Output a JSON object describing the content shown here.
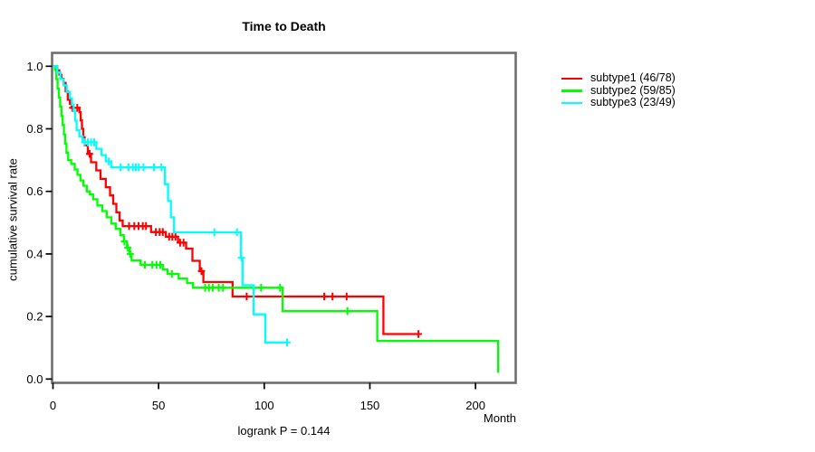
{
  "title": "Time to Death",
  "axes": {
    "y_label": "cumulative survival rate",
    "x_label": "Month"
  },
  "footer": {
    "logrank_label": "logrank P = 0.144"
  },
  "legend": {
    "items": [
      {
        "label": "subtype1 (46/78)",
        "color": "#ff0000"
      },
      {
        "label": "subtype2 (59/85)",
        "color": "#00ff00"
      },
      {
        "label": "subtype3 (23/49)",
        "color": "#00ffff"
      }
    ]
  },
  "chart_data": {
    "type": "line",
    "subtype": "kaplan-meier-step",
    "title": "Time to Death",
    "xlabel": "Month",
    "ylabel": "cumulative survival rate",
    "annotation": "logrank P = 0.144",
    "xlim": [
      0,
      220
    ],
    "ylim": [
      0.0,
      1.0
    ],
    "x_ticks": [
      0,
      50,
      100,
      150,
      200
    ],
    "y_ticks": [
      0.0,
      0.2,
      0.4,
      0.6,
      0.8,
      1.0
    ],
    "grid": false,
    "legend_position": "right-outside",
    "frame_color": "#6f6f6f",
    "series": [
      {
        "name": "subtype1 (46/78)",
        "color": "#ff0000",
        "steps": [
          [
            0,
            1.0
          ],
          [
            2,
            0.987
          ],
          [
            3,
            0.973
          ],
          [
            4,
            0.96
          ],
          [
            5,
            0.947
          ],
          [
            6,
            0.92
          ],
          [
            7,
            0.893
          ],
          [
            8,
            0.88
          ],
          [
            8.8,
            0.867
          ],
          [
            12.5,
            0.853
          ],
          [
            13.1,
            0.827
          ],
          [
            13.7,
            0.8
          ],
          [
            14.3,
            0.773
          ],
          [
            15,
            0.747
          ],
          [
            16.5,
            0.72
          ],
          [
            18,
            0.693
          ],
          [
            20.5,
            0.667
          ],
          [
            22.5,
            0.64
          ],
          [
            25,
            0.613
          ],
          [
            27,
            0.587
          ],
          [
            28.5,
            0.56
          ],
          [
            30,
            0.533
          ],
          [
            31.5,
            0.507
          ],
          [
            33,
            0.489
          ],
          [
            46.4,
            0.47
          ],
          [
            53.4,
            0.455
          ],
          [
            59.2,
            0.436
          ],
          [
            63,
            0.417
          ],
          [
            66,
            0.378
          ],
          [
            69.5,
            0.345
          ],
          [
            71.2,
            0.31
          ],
          [
            85,
            0.264
          ],
          [
            156.4,
            0.144
          ]
        ],
        "end_month": 173.4,
        "censors": [
          [
            9.3,
            0.867
          ],
          [
            11.5,
            0.867
          ],
          [
            17.3,
            0.72
          ],
          [
            36,
            0.489
          ],
          [
            38.5,
            0.489
          ],
          [
            40.5,
            0.489
          ],
          [
            42.5,
            0.489
          ],
          [
            44,
            0.489
          ],
          [
            48.7,
            0.47
          ],
          [
            50.5,
            0.47
          ],
          [
            52,
            0.47
          ],
          [
            55,
            0.455
          ],
          [
            56.5,
            0.455
          ],
          [
            58,
            0.455
          ],
          [
            60.2,
            0.436
          ],
          [
            61.8,
            0.436
          ],
          [
            70.3,
            0.345
          ],
          [
            91.7,
            0.264
          ],
          [
            128.4,
            0.264
          ],
          [
            132.3,
            0.264
          ],
          [
            139,
            0.264
          ],
          [
            173,
            0.144
          ]
        ]
      },
      {
        "name": "subtype2 (59/85)",
        "color": "#00ff00",
        "steps": [
          [
            0,
            1.0
          ],
          [
            1,
            0.988
          ],
          [
            1.6,
            0.959
          ],
          [
            2.2,
            0.929
          ],
          [
            2.8,
            0.9
          ],
          [
            3.4,
            0.871
          ],
          [
            4,
            0.841
          ],
          [
            4.6,
            0.812
          ],
          [
            5.2,
            0.782
          ],
          [
            5.8,
            0.753
          ],
          [
            6.4,
            0.724
          ],
          [
            7.2,
            0.7
          ],
          [
            8.6,
            0.688
          ],
          [
            10.3,
            0.67
          ],
          [
            11.6,
            0.653
          ],
          [
            13,
            0.635
          ],
          [
            14.4,
            0.618
          ],
          [
            16,
            0.6
          ],
          [
            17.5,
            0.59
          ],
          [
            19,
            0.575
          ],
          [
            21,
            0.555
          ],
          [
            23.3,
            0.537
          ],
          [
            25.4,
            0.517
          ],
          [
            27.6,
            0.497
          ],
          [
            29.7,
            0.48
          ],
          [
            31.9,
            0.46
          ],
          [
            33.5,
            0.44
          ],
          [
            35,
            0.42
          ],
          [
            36.2,
            0.4
          ],
          [
            37.2,
            0.379
          ],
          [
            41.5,
            0.365
          ],
          [
            52,
            0.35
          ],
          [
            54.2,
            0.336
          ],
          [
            59.5,
            0.321
          ],
          [
            63.5,
            0.307
          ],
          [
            66.3,
            0.292
          ],
          [
            108.7,
            0.217
          ],
          [
            153.5,
            0.122
          ],
          [
            210.7,
            0.02
          ]
        ],
        "end_month": 210.7,
        "censors": [
          [
            33.8,
            0.44
          ],
          [
            35.4,
            0.42
          ],
          [
            36.6,
            0.4
          ],
          [
            43.5,
            0.365
          ],
          [
            47,
            0.365
          ],
          [
            49,
            0.365
          ],
          [
            50.8,
            0.365
          ],
          [
            56.3,
            0.336
          ],
          [
            72,
            0.292
          ],
          [
            73.8,
            0.292
          ],
          [
            75.6,
            0.292
          ],
          [
            78.5,
            0.292
          ],
          [
            80.5,
            0.292
          ],
          [
            98.5,
            0.292
          ],
          [
            107.5,
            0.292
          ],
          [
            139.4,
            0.217
          ]
        ]
      },
      {
        "name": "subtype3 (23/49)",
        "color": "#00ffff",
        "steps": [
          [
            0,
            1.0
          ],
          [
            2,
            0.98
          ],
          [
            3.5,
            0.959
          ],
          [
            5,
            0.939
          ],
          [
            6.5,
            0.918
          ],
          [
            8,
            0.898
          ],
          [
            9,
            0.877
          ],
          [
            9.8,
            0.857
          ],
          [
            10.5,
            0.826
          ],
          [
            11.2,
            0.796
          ],
          [
            12.5,
            0.776
          ],
          [
            14,
            0.757
          ],
          [
            20.5,
            0.736
          ],
          [
            23,
            0.716
          ],
          [
            25,
            0.696
          ],
          [
            27.5,
            0.677
          ],
          [
            53,
            0.623
          ],
          [
            54.5,
            0.569
          ],
          [
            55.8,
            0.517
          ],
          [
            57.3,
            0.469
          ],
          [
            89,
            0.388
          ],
          [
            89.7,
            0.3
          ],
          [
            95,
            0.207
          ],
          [
            100.5,
            0.117
          ]
        ],
        "end_month": 111.5,
        "censors": [
          [
            15,
            0.757
          ],
          [
            16.5,
            0.757
          ],
          [
            18,
            0.757
          ],
          [
            19.5,
            0.757
          ],
          [
            26.4,
            0.696
          ],
          [
            32,
            0.677
          ],
          [
            35.7,
            0.677
          ],
          [
            37.8,
            0.677
          ],
          [
            39.2,
            0.677
          ],
          [
            40.6,
            0.677
          ],
          [
            42.8,
            0.677
          ],
          [
            47.8,
            0.677
          ],
          [
            51.3,
            0.677
          ],
          [
            76.4,
            0.469
          ],
          [
            87.1,
            0.469
          ],
          [
            89.2,
            0.388
          ],
          [
            110.8,
            0.117
          ]
        ]
      }
    ]
  }
}
